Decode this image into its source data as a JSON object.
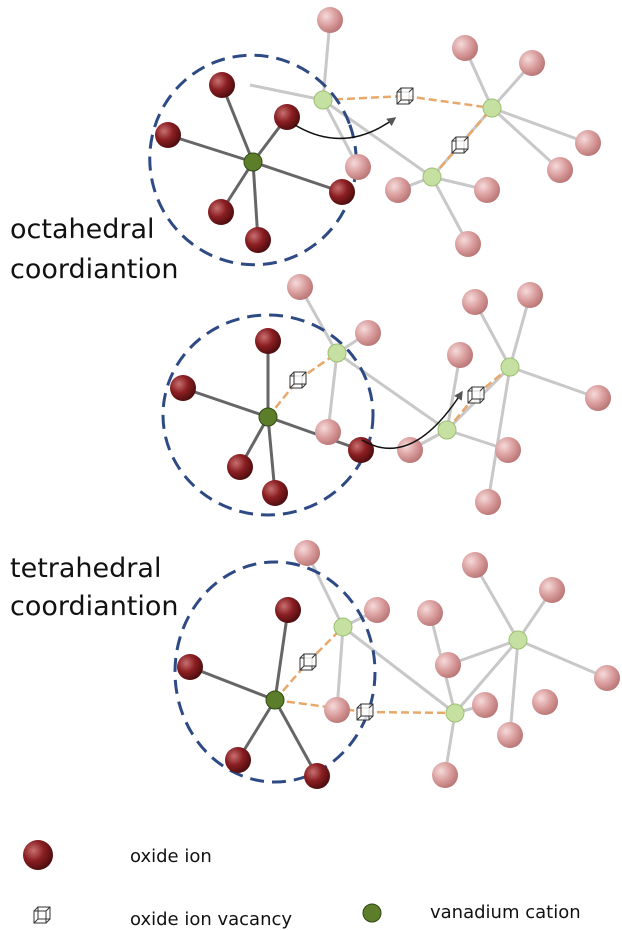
{
  "labels": {
    "octahedral": [
      "octahedral",
      "coordiantion"
    ],
    "tetrahedral": [
      "tetrahedral",
      "coordiantion"
    ]
  },
  "legend": [
    {
      "label": "oxide ion"
    },
    {
      "label": "oxide ion vacancy"
    },
    {
      "label": "vanadium cation"
    }
  ]
}
